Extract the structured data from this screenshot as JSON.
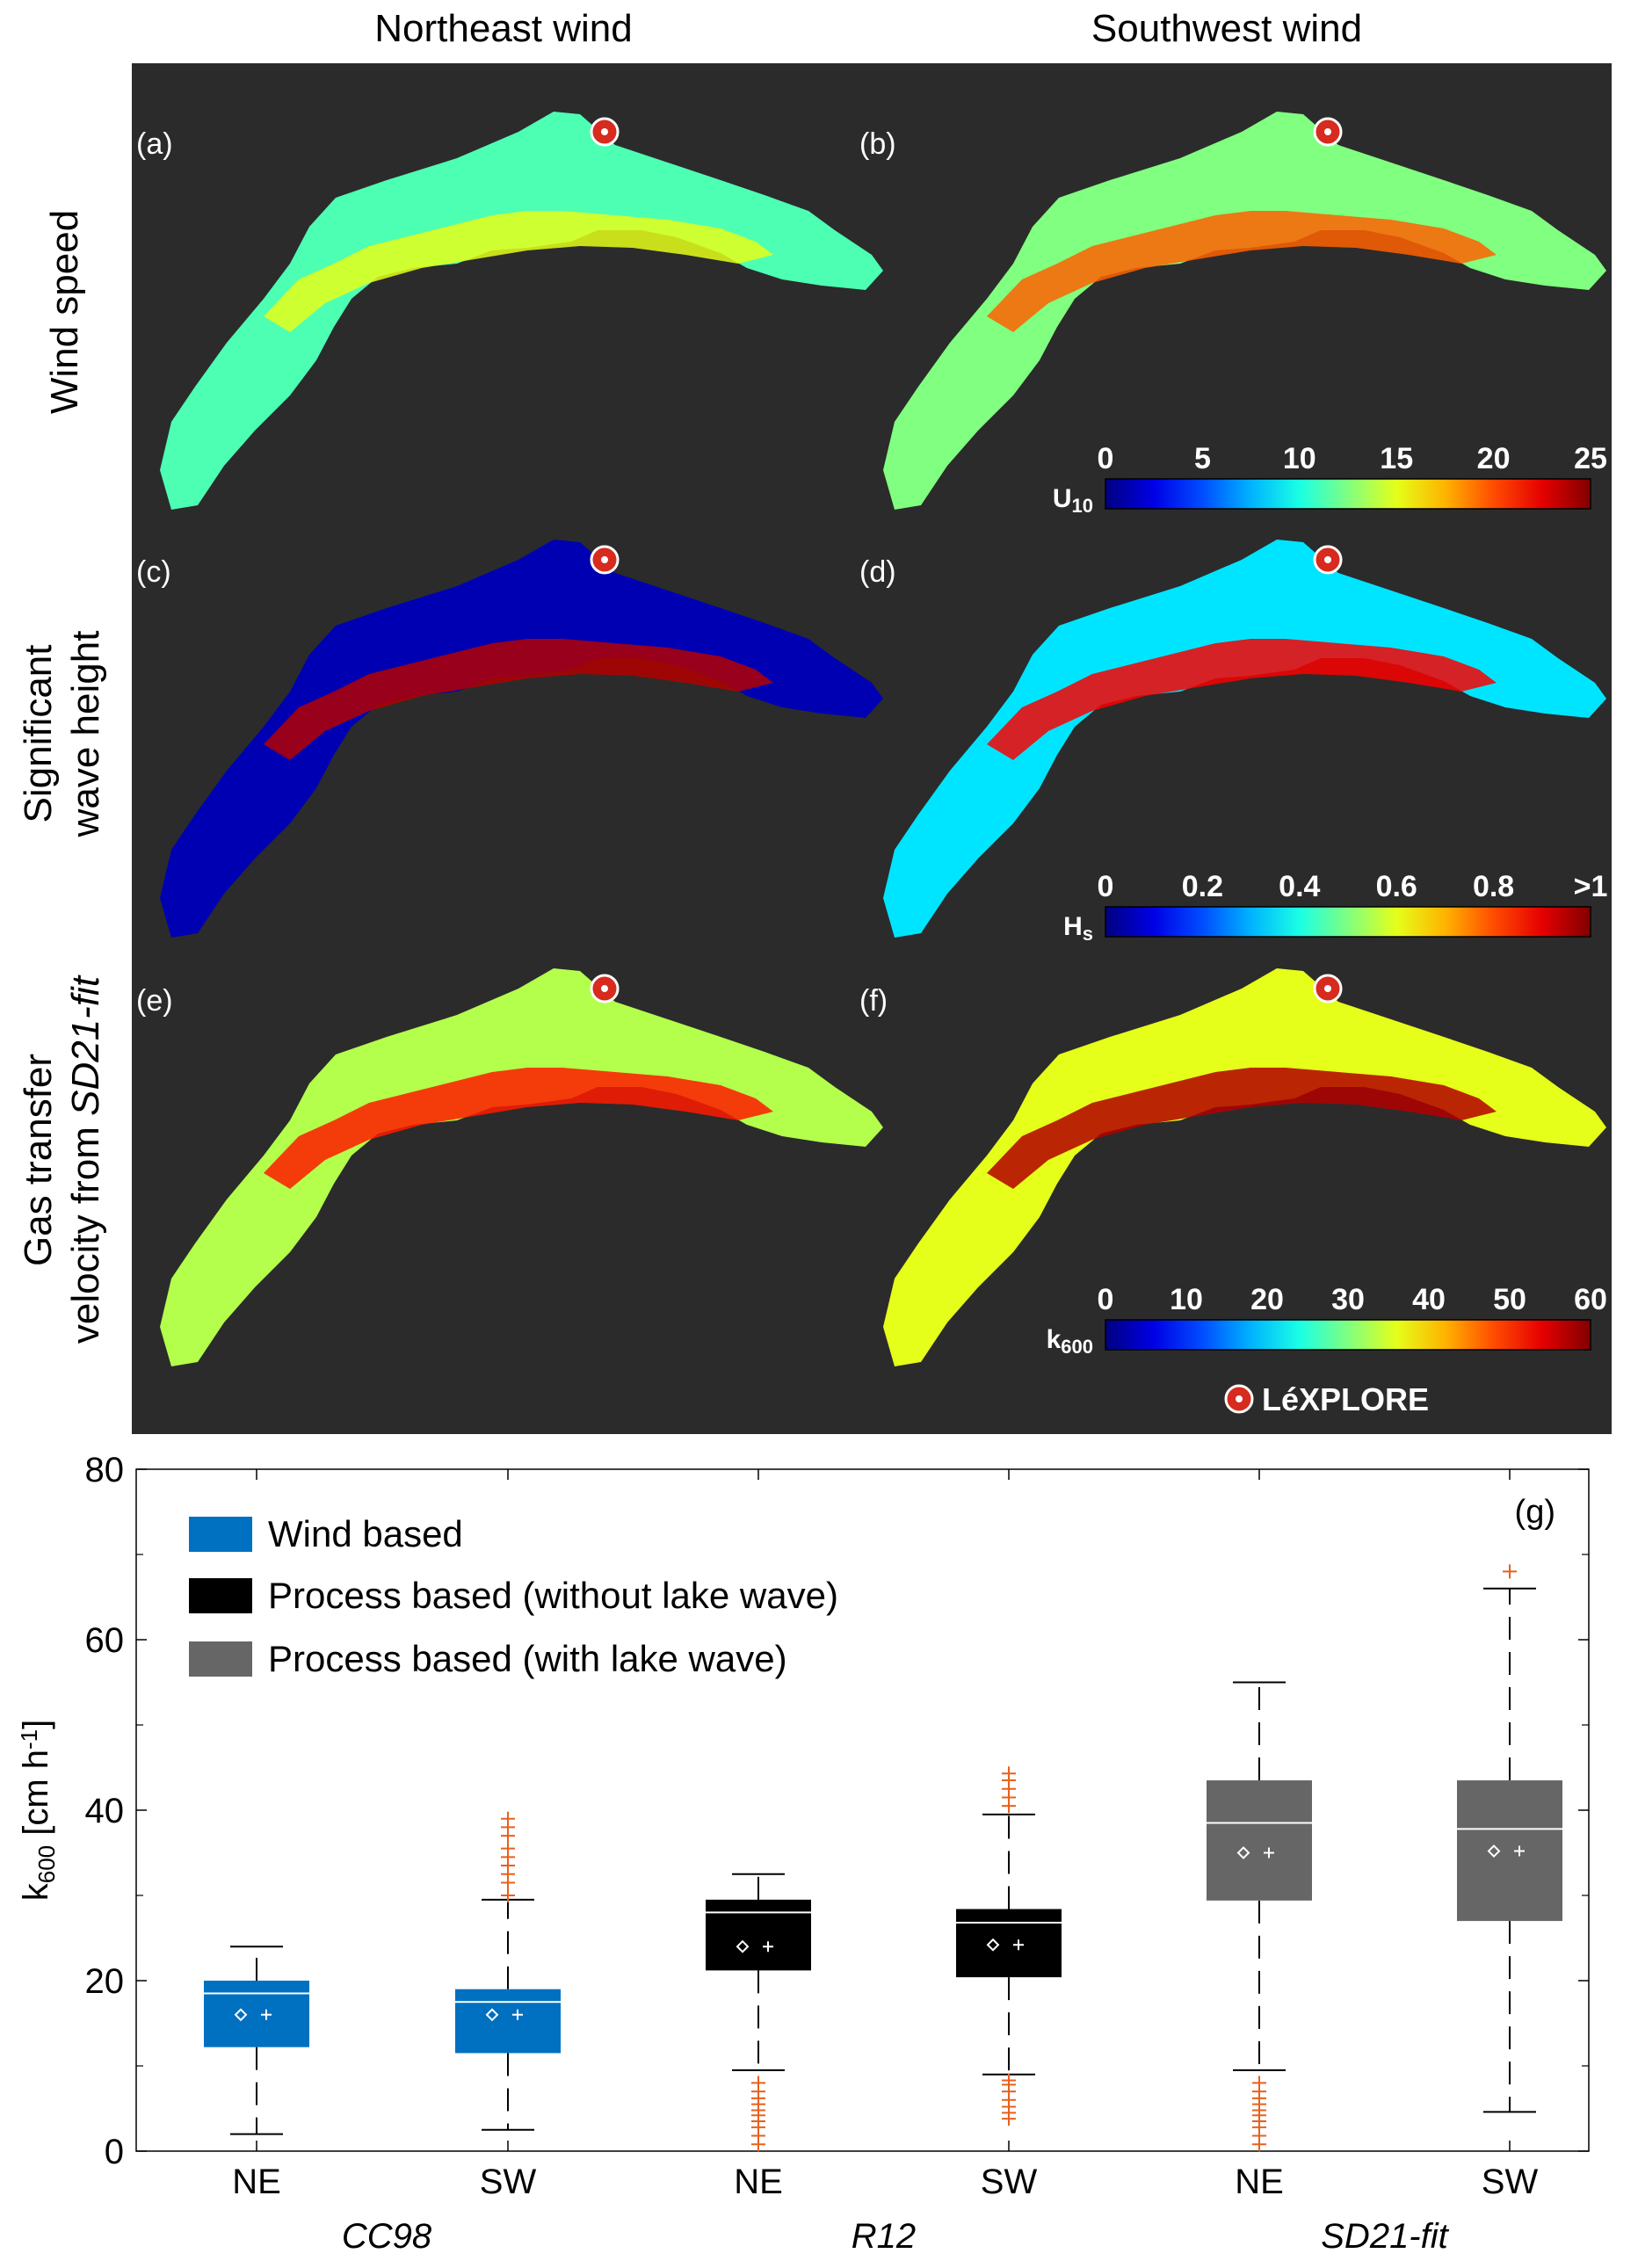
{
  "columns": [
    "Northeast wind",
    "Southwest wind"
  ],
  "rows": [
    {
      "lines": [
        "Wind speed"
      ],
      "italic": [
        false
      ]
    },
    {
      "lines": [
        "Significant",
        "wave height"
      ],
      "italic": [
        false,
        false
      ]
    },
    {
      "lines": [
        "Gas transfer",
        "velocity from SD21-fit"
      ],
      "italic": [
        false,
        false
      ]
    }
  ],
  "panel_labels": [
    "(a)",
    "(b)",
    "(c)",
    "(d)",
    "(e)",
    "(f)"
  ],
  "colorbars": [
    {
      "label": "U10",
      "ticks": [
        "0",
        "5",
        "10",
        "15",
        "20",
        "25"
      ]
    },
    {
      "label": "Hs",
      "ticks": [
        "0",
        "0.2",
        "0.4",
        "0.6",
        "0.8",
        ">1"
      ]
    },
    {
      "label": "k600",
      "ticks": [
        "0",
        "10",
        "20",
        "30",
        "40",
        "50",
        "60"
      ]
    }
  ],
  "marker_label": "LéXPLORE",
  "colors": {
    "map_background": "#2b2b2b",
    "wind_based": "#0070c0",
    "process_no_wave": "#000000",
    "process_wave": "#666666",
    "outlier": "#e8601c",
    "marker": "#d62b1e"
  },
  "chart_data": {
    "type": "box",
    "panel_label": "(g)",
    "ylabel": "k600 [cm h-1]",
    "ylim": [
      0,
      80
    ],
    "yticks": [
      0,
      20,
      40,
      60,
      80
    ],
    "categories": [
      "NE",
      "SW",
      "NE",
      "SW",
      "NE",
      "SW"
    ],
    "groups": [
      "CC98",
      "R12",
      "SD21-fit"
    ],
    "legend": [
      "Wind based",
      "Process based (without lake wave)",
      "Process based (with lake wave)"
    ],
    "legend_placement": "top-left",
    "boxes": [
      {
        "category": "NE",
        "group": "CC98",
        "series": 0,
        "whisker_low": 2,
        "q1": 12.2,
        "median": 18.5,
        "q3": 20,
        "whisker_high": 24,
        "mean": 16,
        "outliers": []
      },
      {
        "category": "SW",
        "group": "CC98",
        "series": 0,
        "whisker_low": 2.5,
        "q1": 11.5,
        "median": 17.5,
        "q3": 19,
        "whisker_high": 29.5,
        "mean": 16,
        "outliers": [
          30,
          31.5,
          32.5,
          33.5,
          34.5,
          35.5,
          37,
          38,
          39
        ]
      },
      {
        "category": "NE",
        "group": "R12",
        "series": 1,
        "whisker_low": 9.5,
        "q1": 21.2,
        "median": 28,
        "q3": 29.5,
        "whisker_high": 32.5,
        "mean": 24,
        "outliers": [
          0.8,
          1.8,
          2.8,
          3.5,
          4.2,
          4.8,
          5.5,
          6.2,
          7,
          8
        ]
      },
      {
        "category": "SW",
        "group": "R12",
        "series": 1,
        "whisker_low": 9,
        "q1": 20.4,
        "median": 26.8,
        "q3": 28.4,
        "whisker_high": 39.5,
        "mean": 24.2,
        "outliers": [
          3.8,
          4.5,
          5.2,
          6,
          7,
          7.8,
          8.3,
          40.5,
          41.5,
          42.5,
          43.5,
          44.3
        ]
      },
      {
        "category": "NE",
        "group": "SD21-fit",
        "series": 2,
        "whisker_low": 9.5,
        "q1": 29.4,
        "median": 38.5,
        "q3": 43.5,
        "whisker_high": 55,
        "mean": 35,
        "outliers": [
          0.8,
          1.8,
          2.8,
          3.5,
          4.2,
          4.8,
          5.5,
          6.2,
          7,
          8
        ]
      },
      {
        "category": "SW",
        "group": "SD21-fit",
        "series": 2,
        "whisker_low": 4.6,
        "q1": 27,
        "median": 37.8,
        "q3": 43.5,
        "whisker_high": 66,
        "mean": 35.2,
        "outliers": [
          68
        ]
      }
    ]
  }
}
